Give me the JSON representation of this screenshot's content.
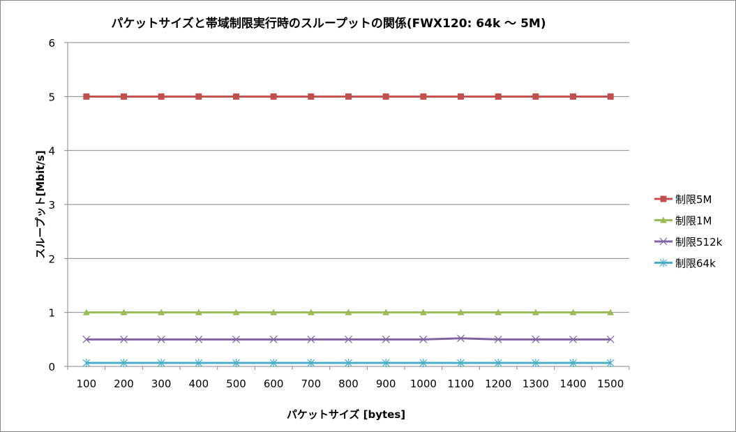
{
  "chart_data": {
    "type": "line",
    "title": "パケットサイズと帯域制限実行時のスループットの関係(FWX120: 64k 〜 5M)",
    "xlabel": "パケットサイズ [bytes]",
    "ylabel": "スループット[Mbit/s]",
    "categories": [
      "100",
      "200",
      "300",
      "400",
      "500",
      "600",
      "700",
      "800",
      "900",
      "1000",
      "1100",
      "1200",
      "1300",
      "1400",
      "1500"
    ],
    "ylim": [
      0,
      6
    ],
    "yticks": [
      "0",
      "1",
      "2",
      "3",
      "4",
      "5",
      "6"
    ],
    "grid": true,
    "legend_position": "right",
    "series": [
      {
        "name": "制限5M",
        "color": "#C0504D",
        "marker": "square",
        "values": [
          5,
          5,
          5,
          5,
          5,
          5,
          5,
          5,
          5,
          5,
          5,
          5,
          5,
          5,
          5
        ]
      },
      {
        "name": "制限1M",
        "color": "#9BBB59",
        "marker": "triangle",
        "values": [
          1,
          1,
          1,
          1,
          1,
          1,
          1,
          1,
          1,
          1,
          1,
          1,
          1,
          1,
          1
        ]
      },
      {
        "name": "制限512k",
        "color": "#8064A2",
        "marker": "x",
        "values": [
          0.5,
          0.5,
          0.5,
          0.5,
          0.5,
          0.5,
          0.5,
          0.5,
          0.5,
          0.5,
          0.52,
          0.5,
          0.5,
          0.5,
          0.5
        ]
      },
      {
        "name": "制限64k",
        "color": "#4BACC6",
        "marker": "star",
        "values": [
          0.064,
          0.064,
          0.064,
          0.064,
          0.064,
          0.064,
          0.064,
          0.064,
          0.064,
          0.064,
          0.064,
          0.064,
          0.064,
          0.064,
          0.064
        ]
      }
    ]
  }
}
